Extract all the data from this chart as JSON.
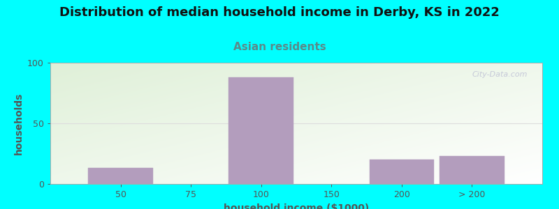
{
  "title": "Distribution of median household income in Derby, KS in 2022",
  "subtitle": "Asian residents",
  "xlabel": "household income ($1000)",
  "ylabel": "households",
  "background_color": "#00FFFF",
  "plot_bg_color_topleft": "#dff0d8",
  "plot_bg_color_bottomright": "#ffffff",
  "bar_color": "#b39dbd",
  "categories": [
    "50",
    "75",
    "100",
    "150",
    "200",
    "> 200"
  ],
  "values": [
    13,
    0,
    88,
    0,
    20,
    23
  ],
  "bar_positions": [
    1,
    2,
    3,
    4,
    5,
    6
  ],
  "bar_widths": [
    1.0,
    1.0,
    1.0,
    1.0,
    1.0,
    1.0
  ],
  "tick_positions": [
    1,
    2,
    3,
    4,
    5,
    6
  ],
  "xlim": [
    0,
    7
  ],
  "ylim": [
    0,
    100
  ],
  "yticks": [
    0,
    50,
    100
  ],
  "title_fontsize": 13,
  "subtitle_fontsize": 11,
  "subtitle_color": "#5a8a8a",
  "axis_label_fontsize": 10,
  "tick_fontsize": 9,
  "tick_color": "#555555",
  "watermark": "City-Data.com",
  "grid_color": "#dddddd"
}
